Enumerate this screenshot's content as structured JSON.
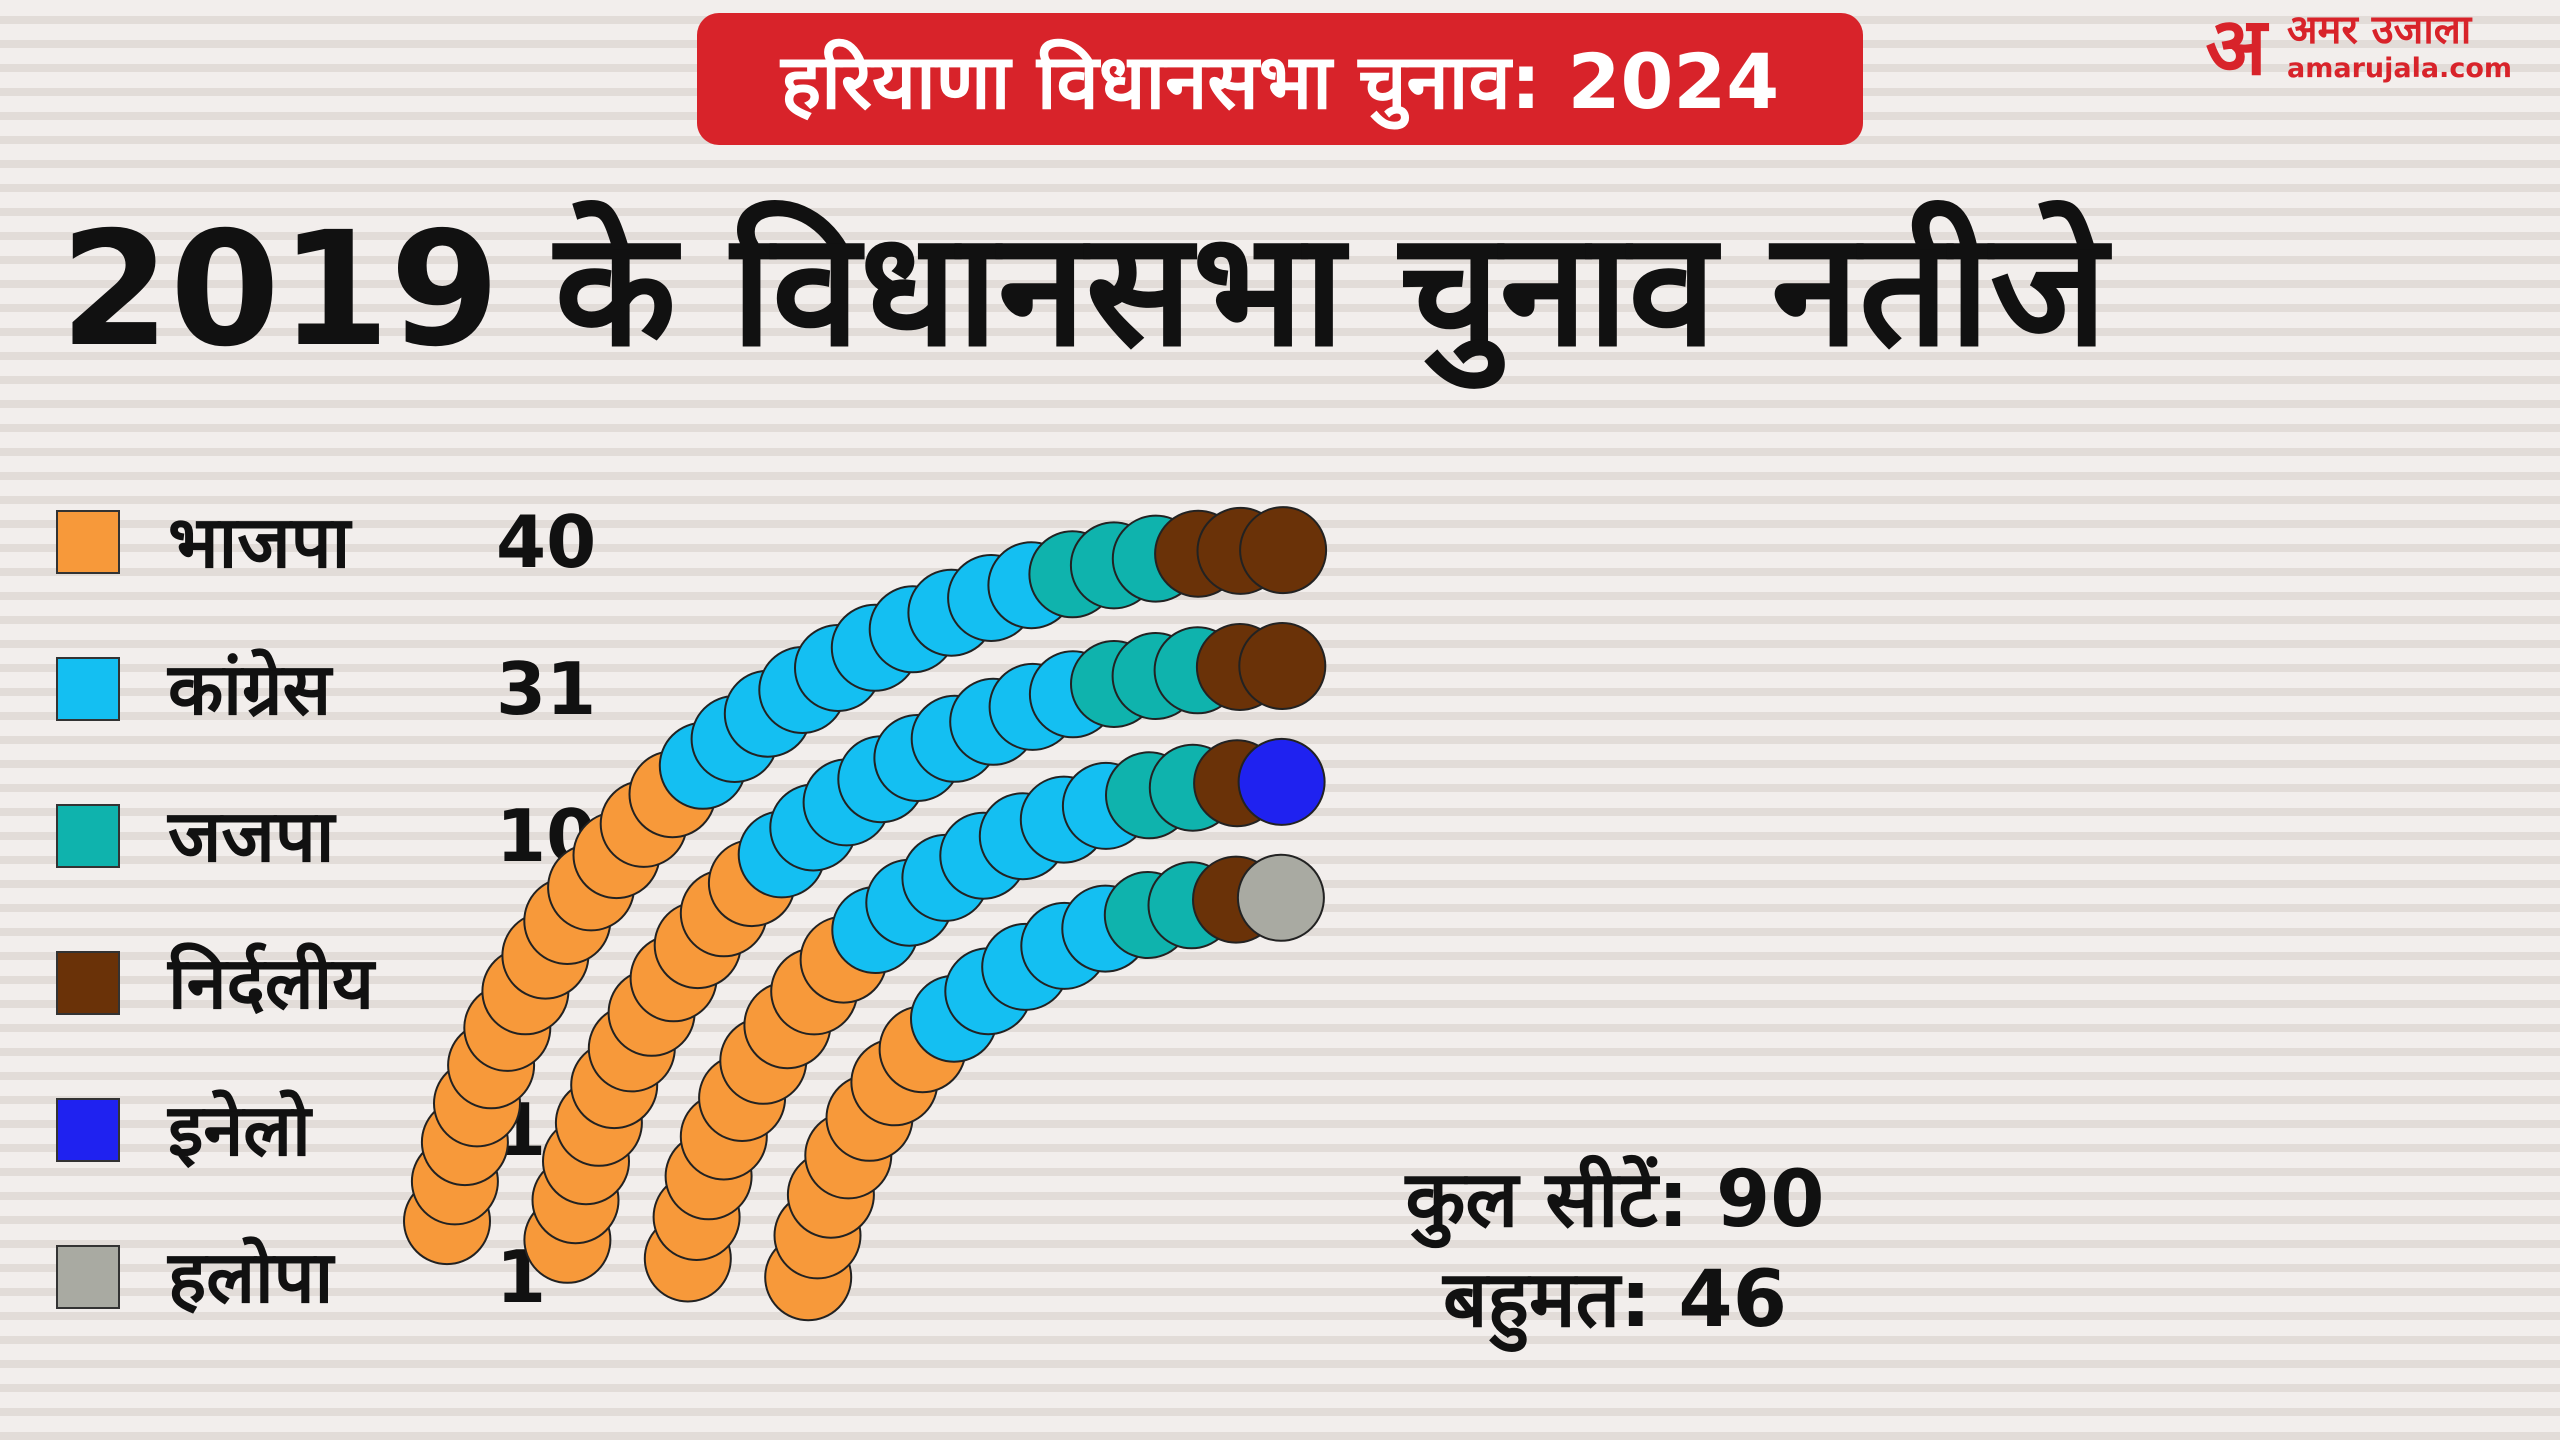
{
  "chart_data": {
    "type": "parliament",
    "subtitle": "हरियाणा विधानसभा चुनाव: 2024",
    "title": "2019 के विधानसभा चुनाव नतीजे",
    "series": [
      {
        "name": "भाजपा",
        "value": 40,
        "color": "#f7993a"
      },
      {
        "name": "कांग्रेस",
        "value": 31,
        "color": "#14bff2"
      },
      {
        "name": "जजपा",
        "value": 10,
        "color": "#0fb3ad"
      },
      {
        "name": "निर्दलीय",
        "value": 7,
        "color": "#6a3208"
      },
      {
        "name": "इनेलो",
        "value": 1,
        "color": "#1f22f0"
      },
      {
        "name": "हलोपा",
        "value": 1,
        "color": "#a9aaa2"
      }
    ],
    "total_seats_label": "कुल सीटें: 90",
    "majority_label": "बहुमत: 46"
  },
  "brand": {
    "logo_mark": "अ",
    "logo_hindi": "अमर उजाला",
    "logo_url": "amarujala.com",
    "accent_color": "#d8232a"
  }
}
